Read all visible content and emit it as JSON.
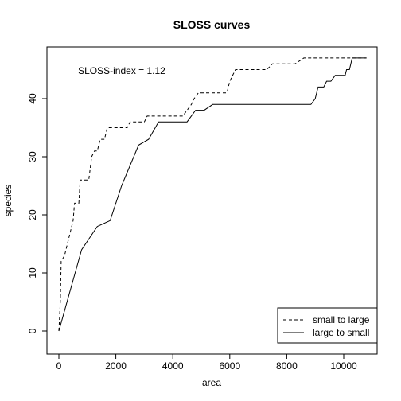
{
  "chart_data": {
    "type": "line",
    "title": "SLOSS curves",
    "xlabel": "area",
    "ylabel": "species",
    "xlim": [
      0,
      10800
    ],
    "ylim": [
      0,
      47
    ],
    "x_ticks": [
      0,
      2000,
      4000,
      6000,
      8000,
      10000
    ],
    "y_ticks": [
      0,
      10,
      20,
      30,
      40
    ],
    "x_tick_labels": [
      "0",
      "2000",
      "4000",
      "6000",
      "8000",
      "10000"
    ],
    "y_tick_labels": [
      "0",
      "10",
      "20",
      "30",
      "40"
    ],
    "grid": false,
    "legend_position": "bottom-right",
    "annotation": "SLOSS-index = 1.12",
    "series": [
      {
        "name": "small to large",
        "line_style": "dashed",
        "color": "#000000",
        "points": [
          [
            0,
            0
          ],
          [
            50,
            5
          ],
          [
            80,
            12
          ],
          [
            200,
            13
          ],
          [
            300,
            15
          ],
          [
            400,
            17
          ],
          [
            500,
            19
          ],
          [
            550,
            22
          ],
          [
            700,
            22
          ],
          [
            750,
            26
          ],
          [
            1050,
            26
          ],
          [
            1150,
            30
          ],
          [
            1250,
            31
          ],
          [
            1350,
            31
          ],
          [
            1450,
            33
          ],
          [
            1600,
            33
          ],
          [
            1700,
            35
          ],
          [
            2400,
            35
          ],
          [
            2500,
            36
          ],
          [
            3000,
            36
          ],
          [
            3100,
            37
          ],
          [
            4350,
            37
          ],
          [
            4500,
            38
          ],
          [
            4650,
            39
          ],
          [
            4750,
            40
          ],
          [
            4900,
            41
          ],
          [
            5900,
            41
          ],
          [
            6000,
            43
          ],
          [
            6200,
            45
          ],
          [
            7300,
            45
          ],
          [
            7500,
            46
          ],
          [
            8300,
            46
          ],
          [
            8600,
            47
          ],
          [
            10800,
            47
          ]
        ]
      },
      {
        "name": "large to small",
        "line_style": "solid",
        "color": "#000000",
        "points": [
          [
            0,
            0
          ],
          [
            800,
            14
          ],
          [
            1350,
            18
          ],
          [
            1800,
            19
          ],
          [
            2200,
            25
          ],
          [
            2800,
            32
          ],
          [
            3150,
            33
          ],
          [
            3500,
            36
          ],
          [
            4500,
            36
          ],
          [
            4800,
            38
          ],
          [
            5100,
            38
          ],
          [
            5400,
            39
          ],
          [
            8850,
            39
          ],
          [
            9000,
            40
          ],
          [
            9100,
            42
          ],
          [
            9300,
            42
          ],
          [
            9400,
            43
          ],
          [
            9550,
            43
          ],
          [
            9700,
            44
          ],
          [
            10050,
            44
          ],
          [
            10100,
            45
          ],
          [
            10200,
            45
          ],
          [
            10300,
            47
          ],
          [
            10800,
            47
          ]
        ]
      }
    ]
  }
}
